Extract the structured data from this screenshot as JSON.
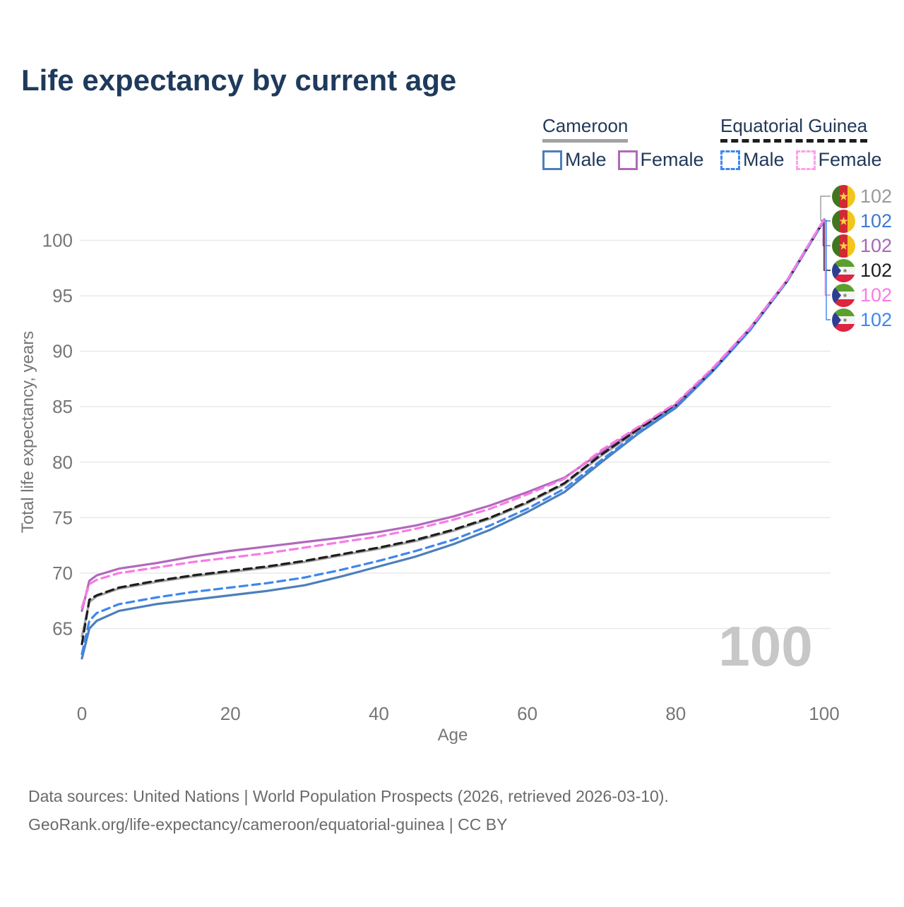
{
  "title": "Life expectancy by current age",
  "legend": {
    "cameroon": {
      "title": "Cameroon",
      "male_label": "Male",
      "female_label": "Female"
    },
    "equatorial_guinea": {
      "title": "Equatorial Guinea",
      "male_label": "Male",
      "female_label": "Female"
    }
  },
  "chart_data": {
    "type": "line",
    "title": "Life expectancy by current age",
    "xlabel": "Age",
    "ylabel": "Total life expectancy, years",
    "xticks": [
      0,
      20,
      40,
      60,
      80,
      100
    ],
    "yticks": [
      65,
      70,
      75,
      80,
      85,
      90,
      95,
      100
    ],
    "xlim": [
      0,
      100
    ],
    "ylim": [
      61.5,
      102.5
    ],
    "grid": "horizontal",
    "age_counter": "100",
    "x": [
      0,
      1,
      2,
      5,
      10,
      15,
      20,
      25,
      30,
      35,
      40,
      45,
      50,
      55,
      60,
      65,
      70,
      75,
      80,
      85,
      90,
      95,
      100
    ],
    "series": [
      {
        "id": "cameroon-total",
        "name": "Cameroon",
        "color": "#a3a3a3",
        "dash": null,
        "values": [
          64.3,
          67.4,
          67.9,
          68.6,
          69.2,
          69.7,
          70.1,
          70.5,
          71.0,
          71.6,
          72.2,
          72.9,
          73.8,
          74.9,
          76.3,
          78.0,
          80.6,
          82.9,
          85.1,
          88.3,
          92.0,
          96.3,
          101.8
        ]
      },
      {
        "id": "cameroon-male",
        "name": "Cameroon Male",
        "color": "#4d7fba",
        "dash": null,
        "values": [
          62.3,
          65.0,
          65.7,
          66.6,
          67.2,
          67.6,
          68.0,
          68.4,
          68.9,
          69.7,
          70.6,
          71.5,
          72.6,
          73.9,
          75.5,
          77.3,
          80.0,
          82.6,
          84.9,
          88.2,
          91.9,
          96.3,
          101.8
        ]
      },
      {
        "id": "cameroon-female",
        "name": "Cameroon Female",
        "color": "#b168bb",
        "dash": null,
        "values": [
          66.6,
          69.3,
          69.8,
          70.4,
          70.9,
          71.5,
          72.0,
          72.4,
          72.8,
          73.2,
          73.7,
          74.3,
          75.1,
          76.1,
          77.3,
          78.6,
          80.9,
          83.1,
          85.2,
          88.4,
          92.1,
          96.4,
          101.9
        ]
      },
      {
        "id": "eqguinea-total",
        "name": "Equatorial Guinea",
        "color": "#1d1d1d",
        "dash": "11,7",
        "values": [
          63.6,
          67.6,
          68.0,
          68.7,
          69.3,
          69.8,
          70.2,
          70.6,
          71.1,
          71.7,
          72.3,
          73.0,
          73.9,
          75.0,
          76.4,
          78.1,
          80.7,
          83.0,
          85.1,
          88.3,
          92.0,
          96.3,
          101.8
        ]
      },
      {
        "id": "eqguinea-male",
        "name": "Equatorial Guinea Male",
        "color": "#3e86f0",
        "dash": "11,7",
        "values": [
          62.7,
          65.7,
          66.4,
          67.2,
          67.8,
          68.3,
          68.7,
          69.1,
          69.6,
          70.3,
          71.1,
          72.0,
          73.0,
          74.3,
          75.8,
          77.6,
          80.2,
          82.7,
          85.0,
          88.2,
          91.9,
          96.3,
          101.8
        ]
      },
      {
        "id": "eqguinea-female",
        "name": "Equatorial Guinea Female",
        "color": "#f97ae5",
        "dash": "11,7",
        "values": [
          66.9,
          69.0,
          69.4,
          70.0,
          70.5,
          71.0,
          71.4,
          71.8,
          72.3,
          72.8,
          73.3,
          74.0,
          74.8,
          75.8,
          77.1,
          78.5,
          81.1,
          83.2,
          85.3,
          88.5,
          92.1,
          96.4,
          101.9
        ]
      }
    ]
  },
  "end_labels": [
    {
      "flag": "cameroon",
      "value": "102",
      "color": "#9a9a9a"
    },
    {
      "flag": "cameroon",
      "value": "102",
      "color": "#3e78d0"
    },
    {
      "flag": "cameroon",
      "value": "102",
      "color": "#a966b8"
    },
    {
      "flag": "equatorial-guinea",
      "value": "102",
      "color": "#1d1d1d"
    },
    {
      "flag": "equatorial-guinea",
      "value": "102",
      "color": "#fb7ae4"
    },
    {
      "flag": "equatorial-guinea",
      "value": "102",
      "color": "#3e86f0"
    }
  ],
  "flag_colors": {
    "cameroon": {
      "green": "#41761f",
      "red": "#d02b31",
      "yellow": "#f3c51c",
      "star": "#f8d147"
    },
    "equatorial_guinea": {
      "green": "#5ba02d",
      "white": "#f4f4f4",
      "red": "#dd2440",
      "blue": "#2c3e92",
      "emblem": "#8a9178"
    }
  },
  "footer": {
    "line1": "Data sources: United Nations | World Population Prospects (2026, retrieved 2026-03-10).",
    "line2": "GeoRank.org/life-expectancy/cameroon/equatorial-guinea | CC BY"
  }
}
